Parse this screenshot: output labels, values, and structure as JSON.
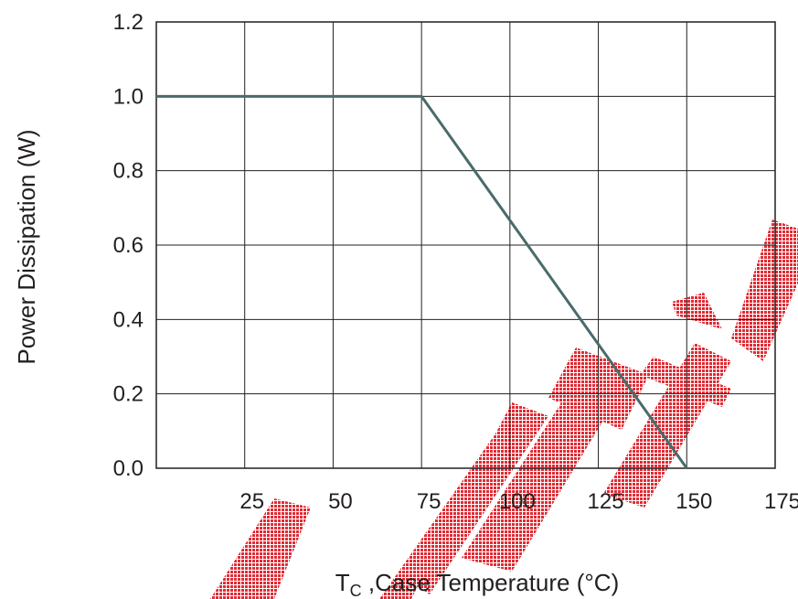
{
  "chart_data": {
    "type": "line",
    "xlabel_main": "T",
    "xlabel_sub": "C",
    "xlabel_rest": " ,Case Temperature (°C)",
    "ylabel": "Power Dissipation (W)",
    "xlim": [
      0,
      175
    ],
    "ylim": [
      0,
      1.2
    ],
    "x_ticks": [
      25,
      50,
      75,
      100,
      125,
      150,
      175
    ],
    "x_tick_labels": [
      "25",
      "50",
      "75",
      "100",
      "125",
      "150",
      "175"
    ],
    "y_ticks": [
      0,
      0.2,
      0.4,
      0.6,
      0.8,
      1.0,
      1.2
    ],
    "y_tick_labels": [
      "0.0",
      "0.2",
      "0.4",
      "0.6",
      "0.8",
      "1.0",
      "1.2"
    ],
    "grid": true,
    "series": [
      {
        "x": [
          0,
          75,
          150
        ],
        "y": [
          1.0,
          1.0,
          0
        ]
      }
    ],
    "line_color": "#4a6b6b",
    "watermark_color": "#e0202a",
    "watermark_text": "TECH"
  }
}
